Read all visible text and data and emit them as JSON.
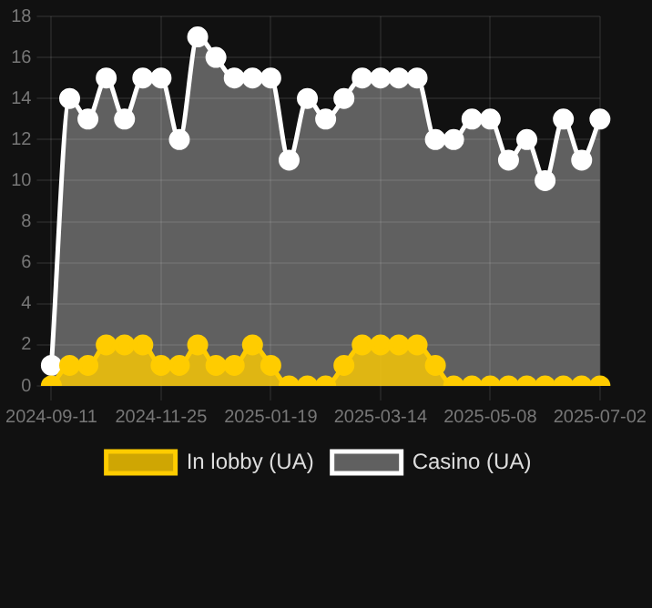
{
  "chart_data": {
    "type": "area",
    "categories": [
      "2024-09-11",
      null,
      null,
      null,
      null,
      null,
      "2024-11-25",
      null,
      null,
      null,
      null,
      null,
      "2025-01-19",
      null,
      null,
      null,
      null,
      null,
      "2025-03-14",
      null,
      null,
      null,
      null,
      null,
      "2025-05-08",
      null,
      null,
      null,
      null,
      null,
      "2025-07-02"
    ],
    "series": [
      {
        "name": "In lobby (UA)",
        "color": "#ffcc00",
        "values": [
          0,
          1,
          1,
          2,
          2,
          2,
          1,
          1,
          2,
          1,
          1,
          2,
          1,
          0,
          0,
          0,
          1,
          2,
          2,
          2,
          2,
          1,
          0,
          0,
          0,
          0,
          0,
          0,
          0,
          0,
          0
        ]
      },
      {
        "name": "Casino (UA)",
        "color": "#ffffff",
        "values": [
          1,
          14,
          13,
          15,
          13,
          15,
          15,
          12,
          17,
          16,
          15,
          15,
          15,
          11,
          14,
          13,
          14,
          15,
          15,
          15,
          15,
          12,
          12,
          13,
          13,
          11,
          12,
          10,
          13,
          11,
          13
        ]
      }
    ],
    "ylim": [
      0,
      18
    ],
    "yticks": [
      0,
      2,
      4,
      6,
      8,
      10,
      12,
      14,
      16,
      18
    ],
    "grid": true,
    "legend": "bottom",
    "marker": "circle"
  }
}
